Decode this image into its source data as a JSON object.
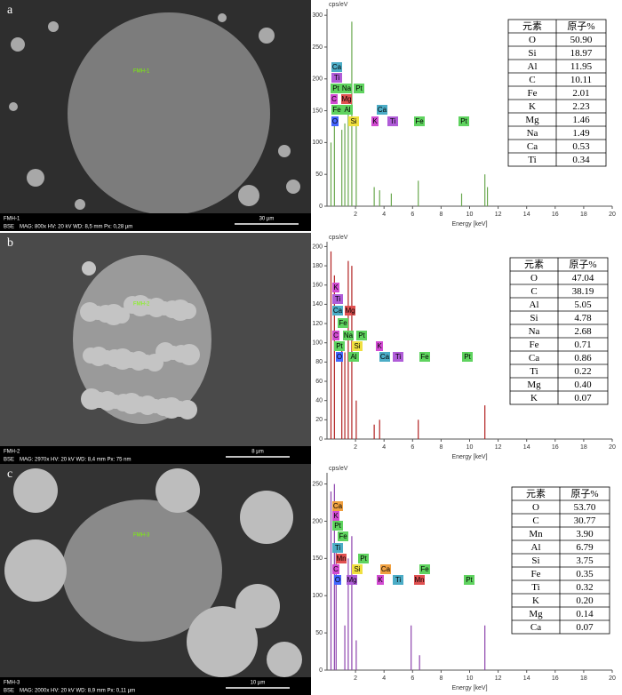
{
  "panels": [
    {
      "label": "a",
      "sem": {
        "sample": "FMH-1",
        "mode": "BSE",
        "info": "MAG: 800x   HV: 20 kV   WD: 8,5 mm   Px: 0,28 µm",
        "scale": "30 µm",
        "marker": "FMH-1"
      },
      "chart_data": {
        "type": "line",
        "ylabel": "cps/eV",
        "xlabel": "Energy [keV]",
        "color": "#6aa84f",
        "xlim": [
          0,
          20
        ],
        "xticks": [
          2,
          4,
          6,
          8,
          10,
          12,
          14,
          16,
          18,
          20
        ],
        "ylim": [
          0,
          310
        ],
        "yticks": [
          0,
          50,
          100,
          150,
          200,
          250,
          300
        ],
        "x": [
          0.28,
          0.52,
          1.04,
          1.25,
          1.49,
          1.74,
          2.05,
          3.31,
          3.69,
          4.51,
          6.4,
          9.44,
          11.07,
          11.25
        ],
        "values": [
          100,
          130,
          120,
          130,
          150,
          290,
          130,
          30,
          25,
          20,
          40,
          20,
          50,
          30
        ],
        "elements": [
          {
            "text": "Ca",
            "color": "#4bacc6"
          },
          {
            "text": "Ti",
            "color": "#b05cd8"
          },
          {
            "text": "Pt",
            "color": "#5fd35f"
          },
          {
            "text": "Na",
            "color": "#5fd35f"
          },
          {
            "text": "Pt",
            "color": "#5fd35f"
          },
          {
            "text": "C",
            "color": "#d24bd2"
          },
          {
            "text": "Mg",
            "color": "#e05050"
          },
          {
            "text": "Fe",
            "color": "#5fd35f"
          },
          {
            "text": "Al",
            "color": "#5fd35f"
          },
          {
            "text": "Ca",
            "color": "#4bacc6"
          },
          {
            "text": "O",
            "color": "#4466ff"
          },
          {
            "text": "Si",
            "color": "#f0e040"
          },
          {
            "text": "K",
            "color": "#d24bd2"
          },
          {
            "text": "Ti",
            "color": "#b05cd8"
          },
          {
            "text": "Fe",
            "color": "#5fd35f"
          },
          {
            "text": "Pt",
            "color": "#5fd35f"
          }
        ]
      },
      "table": {
        "header": [
          "元素",
          "原子%"
        ],
        "rows": [
          [
            "O",
            "50.90"
          ],
          [
            "Si",
            "18.97"
          ],
          [
            "Al",
            "11.95"
          ],
          [
            "C",
            "10.11"
          ],
          [
            "Fe",
            "2.01"
          ],
          [
            "K",
            "2.23"
          ],
          [
            "Mg",
            "1.46"
          ],
          [
            "Na",
            "1.49"
          ],
          [
            "Ca",
            "0.53"
          ],
          [
            "Ti",
            "0.34"
          ]
        ]
      }
    },
    {
      "label": "b",
      "sem": {
        "sample": "FMH-2",
        "mode": "BSE",
        "info": "MAG: 2970x   HV: 20 kV   WD: 8,4 mm   Px: 75 nm",
        "scale": "8 µm",
        "marker": "FMH-2"
      },
      "chart_data": {
        "type": "line",
        "ylabel": "cps/eV",
        "xlabel": "Energy [keV]",
        "color": "#b22222",
        "xlim": [
          0,
          20
        ],
        "xticks": [
          2,
          4,
          6,
          8,
          10,
          12,
          14,
          16,
          18,
          20
        ],
        "ylim": [
          0,
          205
        ],
        "yticks": [
          0,
          20,
          40,
          60,
          80,
          100,
          120,
          140,
          160,
          180,
          200
        ],
        "x": [
          0.28,
          0.52,
          1.04,
          1.25,
          1.49,
          1.74,
          2.05,
          3.31,
          3.69,
          6.4,
          11.07
        ],
        "values": [
          195,
          170,
          100,
          90,
          185,
          180,
          40,
          15,
          20,
          20,
          35
        ],
        "elements": [
          {
            "text": "K",
            "color": "#d24bd2"
          },
          {
            "text": "Ti",
            "color": "#b05cd8"
          },
          {
            "text": "Ca",
            "color": "#4bacc6"
          },
          {
            "text": "Mg",
            "color": "#e05050"
          },
          {
            "text": "Fe",
            "color": "#5fd35f"
          },
          {
            "text": "C",
            "color": "#d24bd2"
          },
          {
            "text": "Na",
            "color": "#5fd35f"
          },
          {
            "text": "Pt",
            "color": "#5fd35f"
          },
          {
            "text": "Pt",
            "color": "#5fd35f"
          },
          {
            "text": "Si",
            "color": "#f0e040"
          },
          {
            "text": "K",
            "color": "#d24bd2"
          },
          {
            "text": "O",
            "color": "#4466ff"
          },
          {
            "text": "Al",
            "color": "#5fd35f"
          },
          {
            "text": "Ca",
            "color": "#4bacc6"
          },
          {
            "text": "Ti",
            "color": "#b05cd8"
          },
          {
            "text": "Fe",
            "color": "#5fd35f"
          },
          {
            "text": "Pt",
            "color": "#5fd35f"
          }
        ]
      },
      "table": {
        "header": [
          "元素",
          "原子%"
        ],
        "rows": [
          [
            "O",
            "47.04"
          ],
          [
            "C",
            "38.19"
          ],
          [
            "Al",
            "5.05"
          ],
          [
            "Si",
            "4.78"
          ],
          [
            "Na",
            "2.68"
          ],
          [
            "Fe",
            "0.71"
          ],
          [
            "Ca",
            "0.86"
          ],
          [
            "Ti",
            "0.22"
          ],
          [
            "Mg",
            "0.40"
          ],
          [
            "K",
            "0.07"
          ]
        ]
      }
    },
    {
      "label": "c",
      "sem": {
        "sample": "FMH-3",
        "mode": "BSE",
        "info": "MAG: 2000x   HV: 20 kV   WD: 8,9 mm   Px: 0,11 µm",
        "scale": "10 µm",
        "marker": "FMH-3"
      },
      "chart_data": {
        "type": "line",
        "ylabel": "cps/eV",
        "xlabel": "Energy [keV]",
        "color": "#8e44ad",
        "xlim": [
          0,
          20
        ],
        "xticks": [
          2,
          4,
          6,
          8,
          10,
          12,
          14,
          16,
          18,
          20
        ],
        "ylim": [
          0,
          265
        ],
        "yticks": [
          0,
          50,
          100,
          150,
          200,
          250
        ],
        "x": [
          0.28,
          0.52,
          0.64,
          1.25,
          1.49,
          1.74,
          2.05,
          5.9,
          6.49,
          11.07
        ],
        "values": [
          240,
          250,
          170,
          60,
          150,
          180,
          40,
          60,
          20,
          60
        ],
        "elements": [
          {
            "text": "Ca",
            "color": "#f0a040"
          },
          {
            "text": "K",
            "color": "#d24bd2"
          },
          {
            "text": "Pt",
            "color": "#5fd35f"
          },
          {
            "text": "Fe",
            "color": "#5fd35f"
          },
          {
            "text": "Ti",
            "color": "#4bacc6"
          },
          {
            "text": "Mn",
            "color": "#e05050"
          },
          {
            "text": "C",
            "color": "#d24bd2"
          },
          {
            "text": "Si",
            "color": "#f0e040"
          },
          {
            "text": "Pt",
            "color": "#5fd35f"
          },
          {
            "text": "Ca",
            "color": "#f0a040"
          },
          {
            "text": "Fe",
            "color": "#5fd35f"
          },
          {
            "text": "O",
            "color": "#4466ff"
          },
          {
            "text": "Mg",
            "color": "#b05cd8"
          },
          {
            "text": "K",
            "color": "#d24bd2"
          },
          {
            "text": "Ti",
            "color": "#4bacc6"
          },
          {
            "text": "Mn",
            "color": "#e05050"
          },
          {
            "text": "Pt",
            "color": "#5fd35f"
          }
        ]
      },
      "table": {
        "header": [
          "元素",
          "原子%"
        ],
        "rows": [
          [
            "O",
            "53.70"
          ],
          [
            "C",
            "30.77"
          ],
          [
            "Mn",
            "3.90"
          ],
          [
            "Al",
            "6.79"
          ],
          [
            "Si",
            "3.75"
          ],
          [
            "Fe",
            "0.35"
          ],
          [
            "Ti",
            "0.32"
          ],
          [
            "K",
            "0.20"
          ],
          [
            "Mg",
            "0.14"
          ],
          [
            "Ca",
            "0.07"
          ]
        ]
      }
    }
  ]
}
